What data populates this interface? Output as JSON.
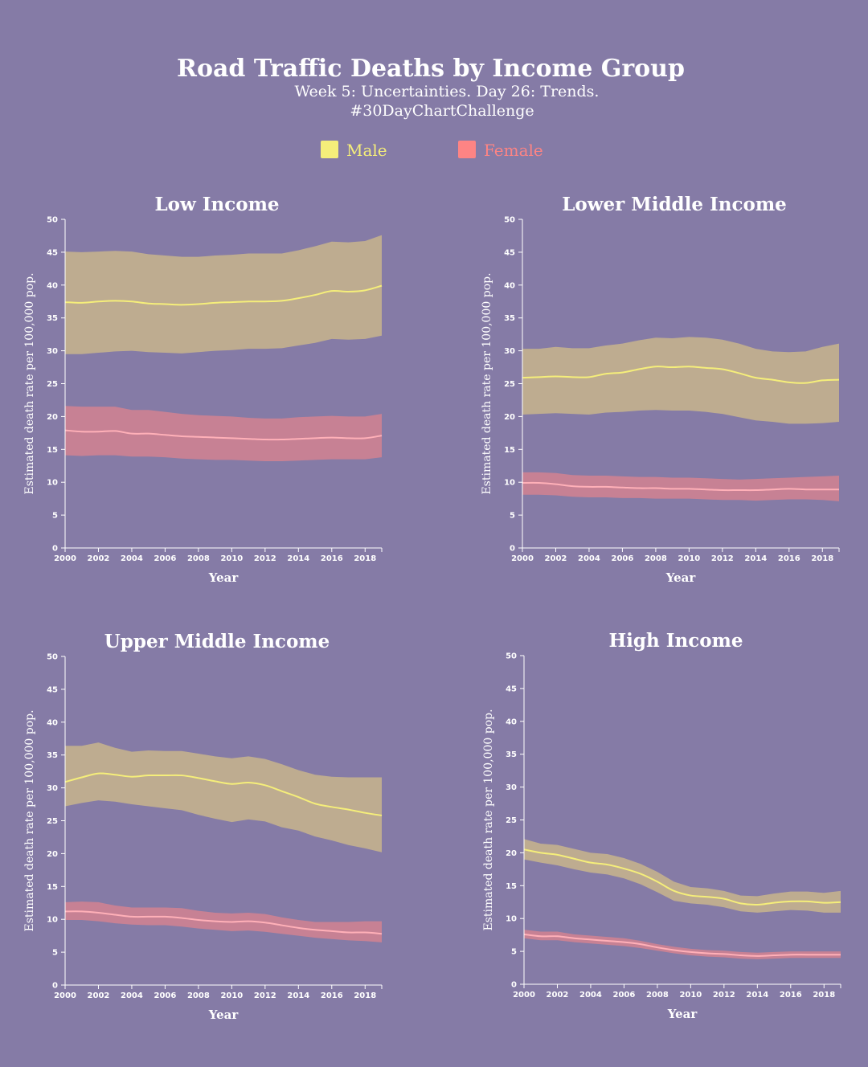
{
  "header": {
    "title": "Road Traffic Deaths by Income Group",
    "subtitle_line1": "Week 5: Uncertainties. Day 26: Trends.",
    "subtitle_line2": "#30DayChartChallenge"
  },
  "colors": {
    "background": "#857ba6",
    "male_line": "#f5ee7a",
    "male_band": "#c4b18e",
    "female_line": "#ffb0b8",
    "female_band": "#e0848e",
    "male_swatch": "#f5ee7a",
    "female_swatch": "#fd8484",
    "male_legend_text": "#f5ee7a",
    "female_legend_text": "#fd8484"
  },
  "legend": [
    {
      "key": "male",
      "label": "Male"
    },
    {
      "key": "female",
      "label": "Female"
    }
  ],
  "chart_data": [
    {
      "type": "area",
      "title": "Low Income",
      "xlabel": "Year",
      "ylabel": "Estimated death rate per 100,000 pop.",
      "ylim": [
        0,
        50
      ],
      "xlim": [
        2000,
        2019
      ],
      "yticks": [
        0,
        5,
        10,
        15,
        20,
        25,
        30,
        35,
        40,
        45,
        50
      ],
      "xticks": [
        2000,
        2002,
        2004,
        2006,
        2008,
        2010,
        2012,
        2014,
        2016,
        2018
      ],
      "x": [
        2000,
        2001,
        2002,
        2003,
        2004,
        2005,
        2006,
        2007,
        2008,
        2009,
        2010,
        2011,
        2012,
        2013,
        2014,
        2015,
        2016,
        2017,
        2018,
        2019
      ],
      "series": [
        {
          "name": "Male",
          "values": [
            37.4,
            37.3,
            37.5,
            37.6,
            37.5,
            37.2,
            37.1,
            37.0,
            37.1,
            37.3,
            37.4,
            37.5,
            37.5,
            37.6,
            38.0,
            38.5,
            39.1,
            39.0,
            39.2,
            39.9
          ],
          "lower": [
            29.5,
            29.5,
            29.7,
            29.9,
            30.0,
            29.8,
            29.7,
            29.6,
            29.8,
            30.0,
            30.1,
            30.3,
            30.3,
            30.4,
            30.8,
            31.2,
            31.8,
            31.7,
            31.8,
            32.3
          ],
          "upper": [
            45.1,
            45.0,
            45.1,
            45.2,
            45.1,
            44.7,
            44.5,
            44.3,
            44.3,
            44.5,
            44.6,
            44.8,
            44.8,
            44.8,
            45.3,
            45.9,
            46.6,
            46.5,
            46.7,
            47.6
          ]
        },
        {
          "name": "Female",
          "values": [
            17.9,
            17.7,
            17.7,
            17.8,
            17.4,
            17.4,
            17.2,
            17.0,
            16.9,
            16.8,
            16.7,
            16.6,
            16.5,
            16.5,
            16.6,
            16.7,
            16.8,
            16.7,
            16.7,
            17.1
          ],
          "lower": [
            14.1,
            14.0,
            14.1,
            14.1,
            13.9,
            13.9,
            13.8,
            13.6,
            13.5,
            13.4,
            13.4,
            13.3,
            13.2,
            13.2,
            13.3,
            13.4,
            13.5,
            13.5,
            13.5,
            13.8
          ],
          "upper": [
            21.6,
            21.5,
            21.5,
            21.5,
            21.0,
            21.0,
            20.7,
            20.4,
            20.2,
            20.1,
            20.0,
            19.8,
            19.7,
            19.7,
            19.9,
            20.0,
            20.1,
            20.0,
            20.0,
            20.4
          ]
        }
      ]
    },
    {
      "type": "area",
      "title": "Lower Middle Income",
      "xlabel": "Year",
      "ylabel": "Estimated death rate per 100,000 pop.",
      "ylim": [
        0,
        50
      ],
      "xlim": [
        2000,
        2019
      ],
      "yticks": [
        0,
        5,
        10,
        15,
        20,
        25,
        30,
        35,
        40,
        45,
        50
      ],
      "xticks": [
        2000,
        2002,
        2004,
        2006,
        2008,
        2010,
        2012,
        2014,
        2016,
        2018
      ],
      "x": [
        2000,
        2001,
        2002,
        2003,
        2004,
        2005,
        2006,
        2007,
        2008,
        2009,
        2010,
        2011,
        2012,
        2013,
        2014,
        2015,
        2016,
        2017,
        2018,
        2019
      ],
      "series": [
        {
          "name": "Male",
          "values": [
            25.9,
            26.0,
            26.1,
            26.0,
            26.0,
            26.5,
            26.7,
            27.2,
            27.6,
            27.5,
            27.6,
            27.4,
            27.2,
            26.6,
            25.9,
            25.6,
            25.2,
            25.1,
            25.5,
            25.6
          ],
          "lower": [
            20.3,
            20.4,
            20.5,
            20.4,
            20.3,
            20.6,
            20.7,
            20.9,
            21.0,
            20.9,
            20.9,
            20.7,
            20.4,
            19.9,
            19.4,
            19.2,
            18.9,
            18.9,
            19.0,
            19.2
          ],
          "upper": [
            30.3,
            30.3,
            30.6,
            30.4,
            30.4,
            30.8,
            31.1,
            31.6,
            32.0,
            31.9,
            32.1,
            32.0,
            31.7,
            31.1,
            30.3,
            29.9,
            29.8,
            29.9,
            30.6,
            31.1
          ]
        },
        {
          "name": "Female",
          "values": [
            9.9,
            9.9,
            9.7,
            9.4,
            9.3,
            9.3,
            9.2,
            9.1,
            9.1,
            9.0,
            9.0,
            8.9,
            8.8,
            8.8,
            8.8,
            8.9,
            9.0,
            8.9,
            8.9,
            8.9
          ],
          "lower": [
            8.1,
            8.1,
            8.0,
            7.8,
            7.7,
            7.7,
            7.6,
            7.6,
            7.5,
            7.5,
            7.5,
            7.4,
            7.3,
            7.3,
            7.2,
            7.3,
            7.4,
            7.4,
            7.3,
            7.1
          ],
          "upper": [
            11.5,
            11.5,
            11.4,
            11.1,
            11.0,
            11.0,
            10.9,
            10.8,
            10.8,
            10.7,
            10.7,
            10.6,
            10.5,
            10.4,
            10.5,
            10.6,
            10.7,
            10.8,
            10.9,
            11.0
          ]
        }
      ]
    },
    {
      "type": "area",
      "title": "Upper Middle Income",
      "xlabel": "Year",
      "ylabel": "Estimated death rate per 100,000 pop.",
      "ylim": [
        0,
        50
      ],
      "xlim": [
        2000,
        2019
      ],
      "yticks": [
        0,
        5,
        10,
        15,
        20,
        25,
        30,
        35,
        40,
        45,
        50
      ],
      "xticks": [
        2000,
        2002,
        2004,
        2006,
        2008,
        2010,
        2012,
        2014,
        2016,
        2018
      ],
      "x": [
        2000,
        2001,
        2002,
        2003,
        2004,
        2005,
        2006,
        2007,
        2008,
        2009,
        2010,
        2011,
        2012,
        2013,
        2014,
        2015,
        2016,
        2017,
        2018,
        2019
      ],
      "series": [
        {
          "name": "Male",
          "values": [
            30.9,
            31.6,
            32.2,
            32.0,
            31.7,
            31.9,
            31.9,
            31.9,
            31.5,
            31.0,
            30.6,
            30.8,
            30.4,
            29.5,
            28.6,
            27.6,
            27.1,
            26.7,
            26.2,
            25.8
          ],
          "lower": [
            27.2,
            27.7,
            28.1,
            27.9,
            27.5,
            27.2,
            26.9,
            26.6,
            25.9,
            25.3,
            24.8,
            25.2,
            24.9,
            24.0,
            23.5,
            22.6,
            22.0,
            21.3,
            20.8,
            20.2
          ],
          "upper": [
            36.4,
            36.4,
            36.9,
            36.1,
            35.5,
            35.7,
            35.6,
            35.6,
            35.2,
            34.8,
            34.5,
            34.8,
            34.4,
            33.6,
            32.7,
            32.0,
            31.7,
            31.6,
            31.6,
            31.6
          ]
        },
        {
          "name": "Female",
          "values": [
            11.2,
            11.2,
            11.0,
            10.7,
            10.4,
            10.4,
            10.4,
            10.2,
            9.9,
            9.7,
            9.6,
            9.7,
            9.5,
            9.1,
            8.7,
            8.4,
            8.2,
            8.0,
            8.0,
            7.8
          ],
          "lower": [
            9.9,
            9.9,
            9.7,
            9.4,
            9.2,
            9.1,
            9.1,
            8.9,
            8.6,
            8.4,
            8.2,
            8.3,
            8.1,
            7.8,
            7.5,
            7.2,
            7.0,
            6.8,
            6.7,
            6.5
          ],
          "upper": [
            12.6,
            12.7,
            12.6,
            12.1,
            11.8,
            11.8,
            11.8,
            11.7,
            11.3,
            11.0,
            10.9,
            11.0,
            10.8,
            10.3,
            9.9,
            9.6,
            9.6,
            9.6,
            9.7,
            9.7
          ]
        }
      ]
    },
    {
      "type": "area",
      "title": "High Income",
      "xlabel": "Year",
      "ylabel": "Estimated death rate per 100,000 pop.",
      "ylim": [
        0,
        50
      ],
      "xlim": [
        2000,
        2019
      ],
      "yticks": [
        0,
        5,
        10,
        15,
        20,
        25,
        30,
        35,
        40,
        45,
        50
      ],
      "xticks": [
        2000,
        2002,
        2004,
        2006,
        2008,
        2010,
        2012,
        2014,
        2016,
        2018
      ],
      "x": [
        2000,
        2001,
        2002,
        2003,
        2004,
        2005,
        2006,
        2007,
        2008,
        2009,
        2010,
        2011,
        2012,
        2013,
        2014,
        2015,
        2016,
        2017,
        2018,
        2019
      ],
      "series": [
        {
          "name": "Male",
          "values": [
            20.5,
            20.0,
            19.7,
            19.1,
            18.5,
            18.2,
            17.6,
            16.8,
            15.6,
            14.2,
            13.5,
            13.3,
            13.0,
            12.3,
            12.1,
            12.4,
            12.6,
            12.6,
            12.4,
            12.5
          ],
          "lower": [
            19.0,
            18.5,
            18.1,
            17.5,
            17.0,
            16.7,
            16.1,
            15.2,
            14.0,
            12.7,
            12.3,
            12.1,
            11.7,
            11.1,
            10.9,
            11.1,
            11.3,
            11.2,
            10.9,
            10.9
          ],
          "upper": [
            22.1,
            21.4,
            21.2,
            20.6,
            20.0,
            19.8,
            19.2,
            18.3,
            17.1,
            15.6,
            14.8,
            14.6,
            14.2,
            13.5,
            13.4,
            13.8,
            14.1,
            14.1,
            13.9,
            14.2
          ]
        },
        {
          "name": "Female",
          "values": [
            7.6,
            7.3,
            7.3,
            7.0,
            6.8,
            6.6,
            6.4,
            6.1,
            5.6,
            5.2,
            4.9,
            4.7,
            4.6,
            4.4,
            4.3,
            4.4,
            4.5,
            4.5,
            4.5,
            4.5
          ],
          "lower": [
            7.0,
            6.7,
            6.7,
            6.4,
            6.2,
            6.0,
            5.8,
            5.5,
            5.1,
            4.7,
            4.4,
            4.2,
            4.1,
            3.9,
            3.8,
            3.9,
            4.0,
            4.0,
            4.0,
            4.0
          ],
          "upper": [
            8.3,
            8.0,
            8.0,
            7.6,
            7.4,
            7.2,
            7.0,
            6.6,
            6.1,
            5.7,
            5.4,
            5.2,
            5.1,
            4.9,
            4.8,
            4.9,
            5.0,
            5.0,
            5.0,
            5.0
          ]
        }
      ]
    }
  ]
}
